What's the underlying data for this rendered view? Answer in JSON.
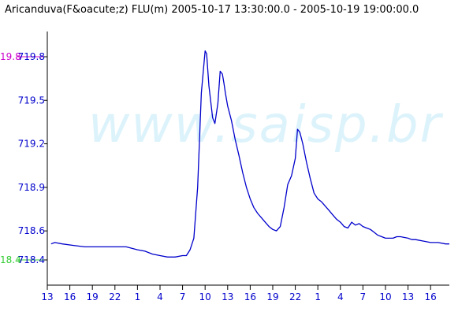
{
  "title": "Aricanduva(F&oacute;z) FLU(m) 2005-10-17 13:30:00.0 - 2005-10-19 19:00:00.0",
  "watermark": "www.saisp.br",
  "colors": {
    "series": "#0000cc",
    "axis": "#000000",
    "tick_text": "#0000cc",
    "max_ref": "#cc00cc",
    "min_ref": "#33cc33",
    "watermark": "#ddf3fb"
  },
  "chart_data": {
    "type": "line",
    "title": "Aricanduva(F&oacute;z) FLU(m) 2005-10-17 13:30:00.0 - 2005-10-19 19:00:00.0",
    "xlabel": "",
    "ylabel": "",
    "x_unit": "hours since 2005-10-17 13:00",
    "xlim": [
      0,
      53.5
    ],
    "ylim": [
      718.38,
      720.0
    ],
    "grid": false,
    "y_ticks": [
      {
        "value": 718.4,
        "label": "718.4"
      },
      {
        "value": 718.6,
        "label": "718.6"
      },
      {
        "value": 718.9,
        "label": "718.9"
      },
      {
        "value": 719.2,
        "label": "719.2"
      },
      {
        "value": 719.5,
        "label": "719.5"
      },
      {
        "value": 719.8,
        "label": "719.8"
      }
    ],
    "x_ticks": [
      {
        "value": 0,
        "label": "13"
      },
      {
        "value": 3,
        "label": "16"
      },
      {
        "value": 6,
        "label": "19"
      },
      {
        "value": 9,
        "label": "22"
      },
      {
        "value": 12,
        "label": "1"
      },
      {
        "value": 15,
        "label": "4"
      },
      {
        "value": 18,
        "label": "7"
      },
      {
        "value": 21,
        "label": "10"
      },
      {
        "value": 24,
        "label": "13"
      },
      {
        "value": 27,
        "label": "16"
      },
      {
        "value": 30,
        "label": "19"
      },
      {
        "value": 33,
        "label": "22"
      },
      {
        "value": 36,
        "label": "1"
      },
      {
        "value": 39,
        "label": "4"
      },
      {
        "value": 42,
        "label": "7"
      },
      {
        "value": 45,
        "label": "10"
      },
      {
        "value": 48,
        "label": "13"
      },
      {
        "value": 51,
        "label": "16"
      }
    ],
    "reference_lines": [
      {
        "name": "max",
        "value": 719.8,
        "label": "19.8",
        "color": "#cc00cc"
      },
      {
        "name": "min",
        "value": 718.4,
        "label": "18.4",
        "color": "#33cc33"
      }
    ],
    "series": [
      {
        "color": "#0000cc",
        "x": [
          0.5,
          1.0,
          2.0,
          3.5,
          5.0,
          7.0,
          10.5,
          12.0,
          13.0,
          14.0,
          15.0,
          16.0,
          17.0,
          18.0,
          18.5,
          19.0,
          19.5,
          20.0,
          20.5,
          21.0,
          21.2,
          21.5,
          22.0,
          22.3,
          22.7,
          23.0,
          23.3,
          23.5,
          23.7,
          24.0,
          24.5,
          25.0,
          25.5,
          26.0,
          26.5,
          27.0,
          27.5,
          28.0,
          28.5,
          29.0,
          29.5,
          30.0,
          30.5,
          31.0,
          31.5,
          32.0,
          32.5,
          33.0,
          33.3,
          33.6,
          34.0,
          34.5,
          35.0,
          35.5,
          36.0,
          36.5,
          37.0,
          37.5,
          38.0,
          38.5,
          39.0,
          39.5,
          40.0,
          40.5,
          41.0,
          41.5,
          42.0,
          42.5,
          43.0,
          43.5,
          44.0,
          44.5,
          45.0,
          45.5,
          46.0,
          46.5,
          47.0,
          48.0,
          48.5,
          49.0,
          50.0,
          51.0,
          52.0,
          53.0,
          53.5
        ],
        "values": [
          718.51,
          718.52,
          718.51,
          718.5,
          718.49,
          718.49,
          718.49,
          718.47,
          718.46,
          718.44,
          718.43,
          718.42,
          718.42,
          718.43,
          718.43,
          718.47,
          718.55,
          718.9,
          719.55,
          719.84,
          719.82,
          719.6,
          719.38,
          719.34,
          719.48,
          719.7,
          719.68,
          719.62,
          719.55,
          719.46,
          719.36,
          719.23,
          719.12,
          719.0,
          718.9,
          718.82,
          718.76,
          718.72,
          718.69,
          718.66,
          718.63,
          718.61,
          718.6,
          718.63,
          718.76,
          718.92,
          718.98,
          719.1,
          719.3,
          719.28,
          719.2,
          719.07,
          718.96,
          718.86,
          718.82,
          718.8,
          718.77,
          718.74,
          718.71,
          718.68,
          718.66,
          718.63,
          718.62,
          718.66,
          718.64,
          718.65,
          718.63,
          718.62,
          718.61,
          718.59,
          718.57,
          718.56,
          718.55,
          718.55,
          718.55,
          718.56,
          718.56,
          718.55,
          718.54,
          718.54,
          718.53,
          718.52,
          718.52,
          718.51,
          718.51
        ]
      }
    ]
  }
}
